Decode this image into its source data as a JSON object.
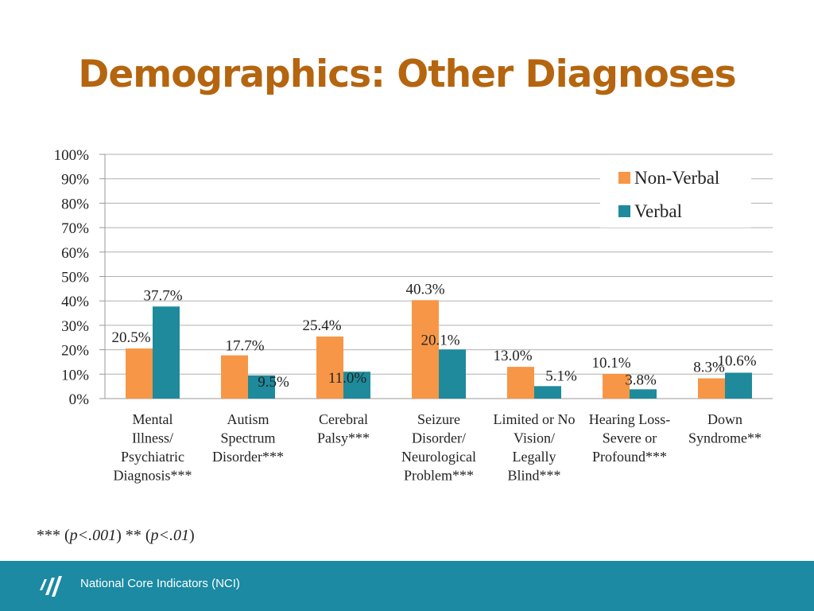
{
  "slide": {
    "title": "Demographics: Other Diagnoses",
    "footnote_parts": [
      "*** (",
      "p<.001",
      ") ** (",
      "p<.01",
      ")"
    ],
    "footer_text": "National Core Indicators (NCI)"
  },
  "colors": {
    "title": "#b5650f",
    "non_verbal": "#f79646",
    "verbal": "#1e8a9c",
    "footer_bg": "#1b8aa2",
    "grid": "#b0b0b0"
  },
  "icons": [
    "nci-logo-icon"
  ],
  "chart_data": {
    "type": "bar",
    "categories": [
      [
        "Mental",
        "Illness/",
        "Psychiatric",
        "Diagnosis***"
      ],
      [
        "Autism",
        "Spectrum",
        "Disorder***"
      ],
      [
        "Cerebral",
        "Palsy***"
      ],
      [
        "Seizure",
        "Disorder/",
        "Neurological",
        "Problem***"
      ],
      [
        "Limited or No",
        "Vision/",
        "Legally",
        "Blind***"
      ],
      [
        "Hearing Loss-",
        "Severe or",
        "Profound***"
      ],
      [
        "Down",
        "Syndrome**"
      ]
    ],
    "series": [
      {
        "name": "Non-Verbal",
        "values": [
          20.5,
          17.7,
          25.4,
          40.3,
          13.0,
          10.1,
          8.3
        ],
        "labels": [
          "20.5%",
          "17.7%",
          "25.4%",
          "40.3%",
          "13.0%",
          "10.1%",
          "8.3%"
        ]
      },
      {
        "name": "Verbal",
        "values": [
          37.7,
          9.5,
          11.0,
          20.1,
          5.1,
          3.8,
          10.6
        ],
        "labels": [
          "37.7%",
          "9.5%",
          "11.0%",
          "20.1%",
          "5.1%",
          "3.8%",
          "10.6%"
        ]
      }
    ],
    "yticks": [
      "0%",
      "10%",
      "20%",
      "30%",
      "40%",
      "50%",
      "60%",
      "70%",
      "80%",
      "90%",
      "100%"
    ],
    "ylim": [
      0,
      100
    ],
    "grid": true,
    "legend_position": "top-right"
  }
}
